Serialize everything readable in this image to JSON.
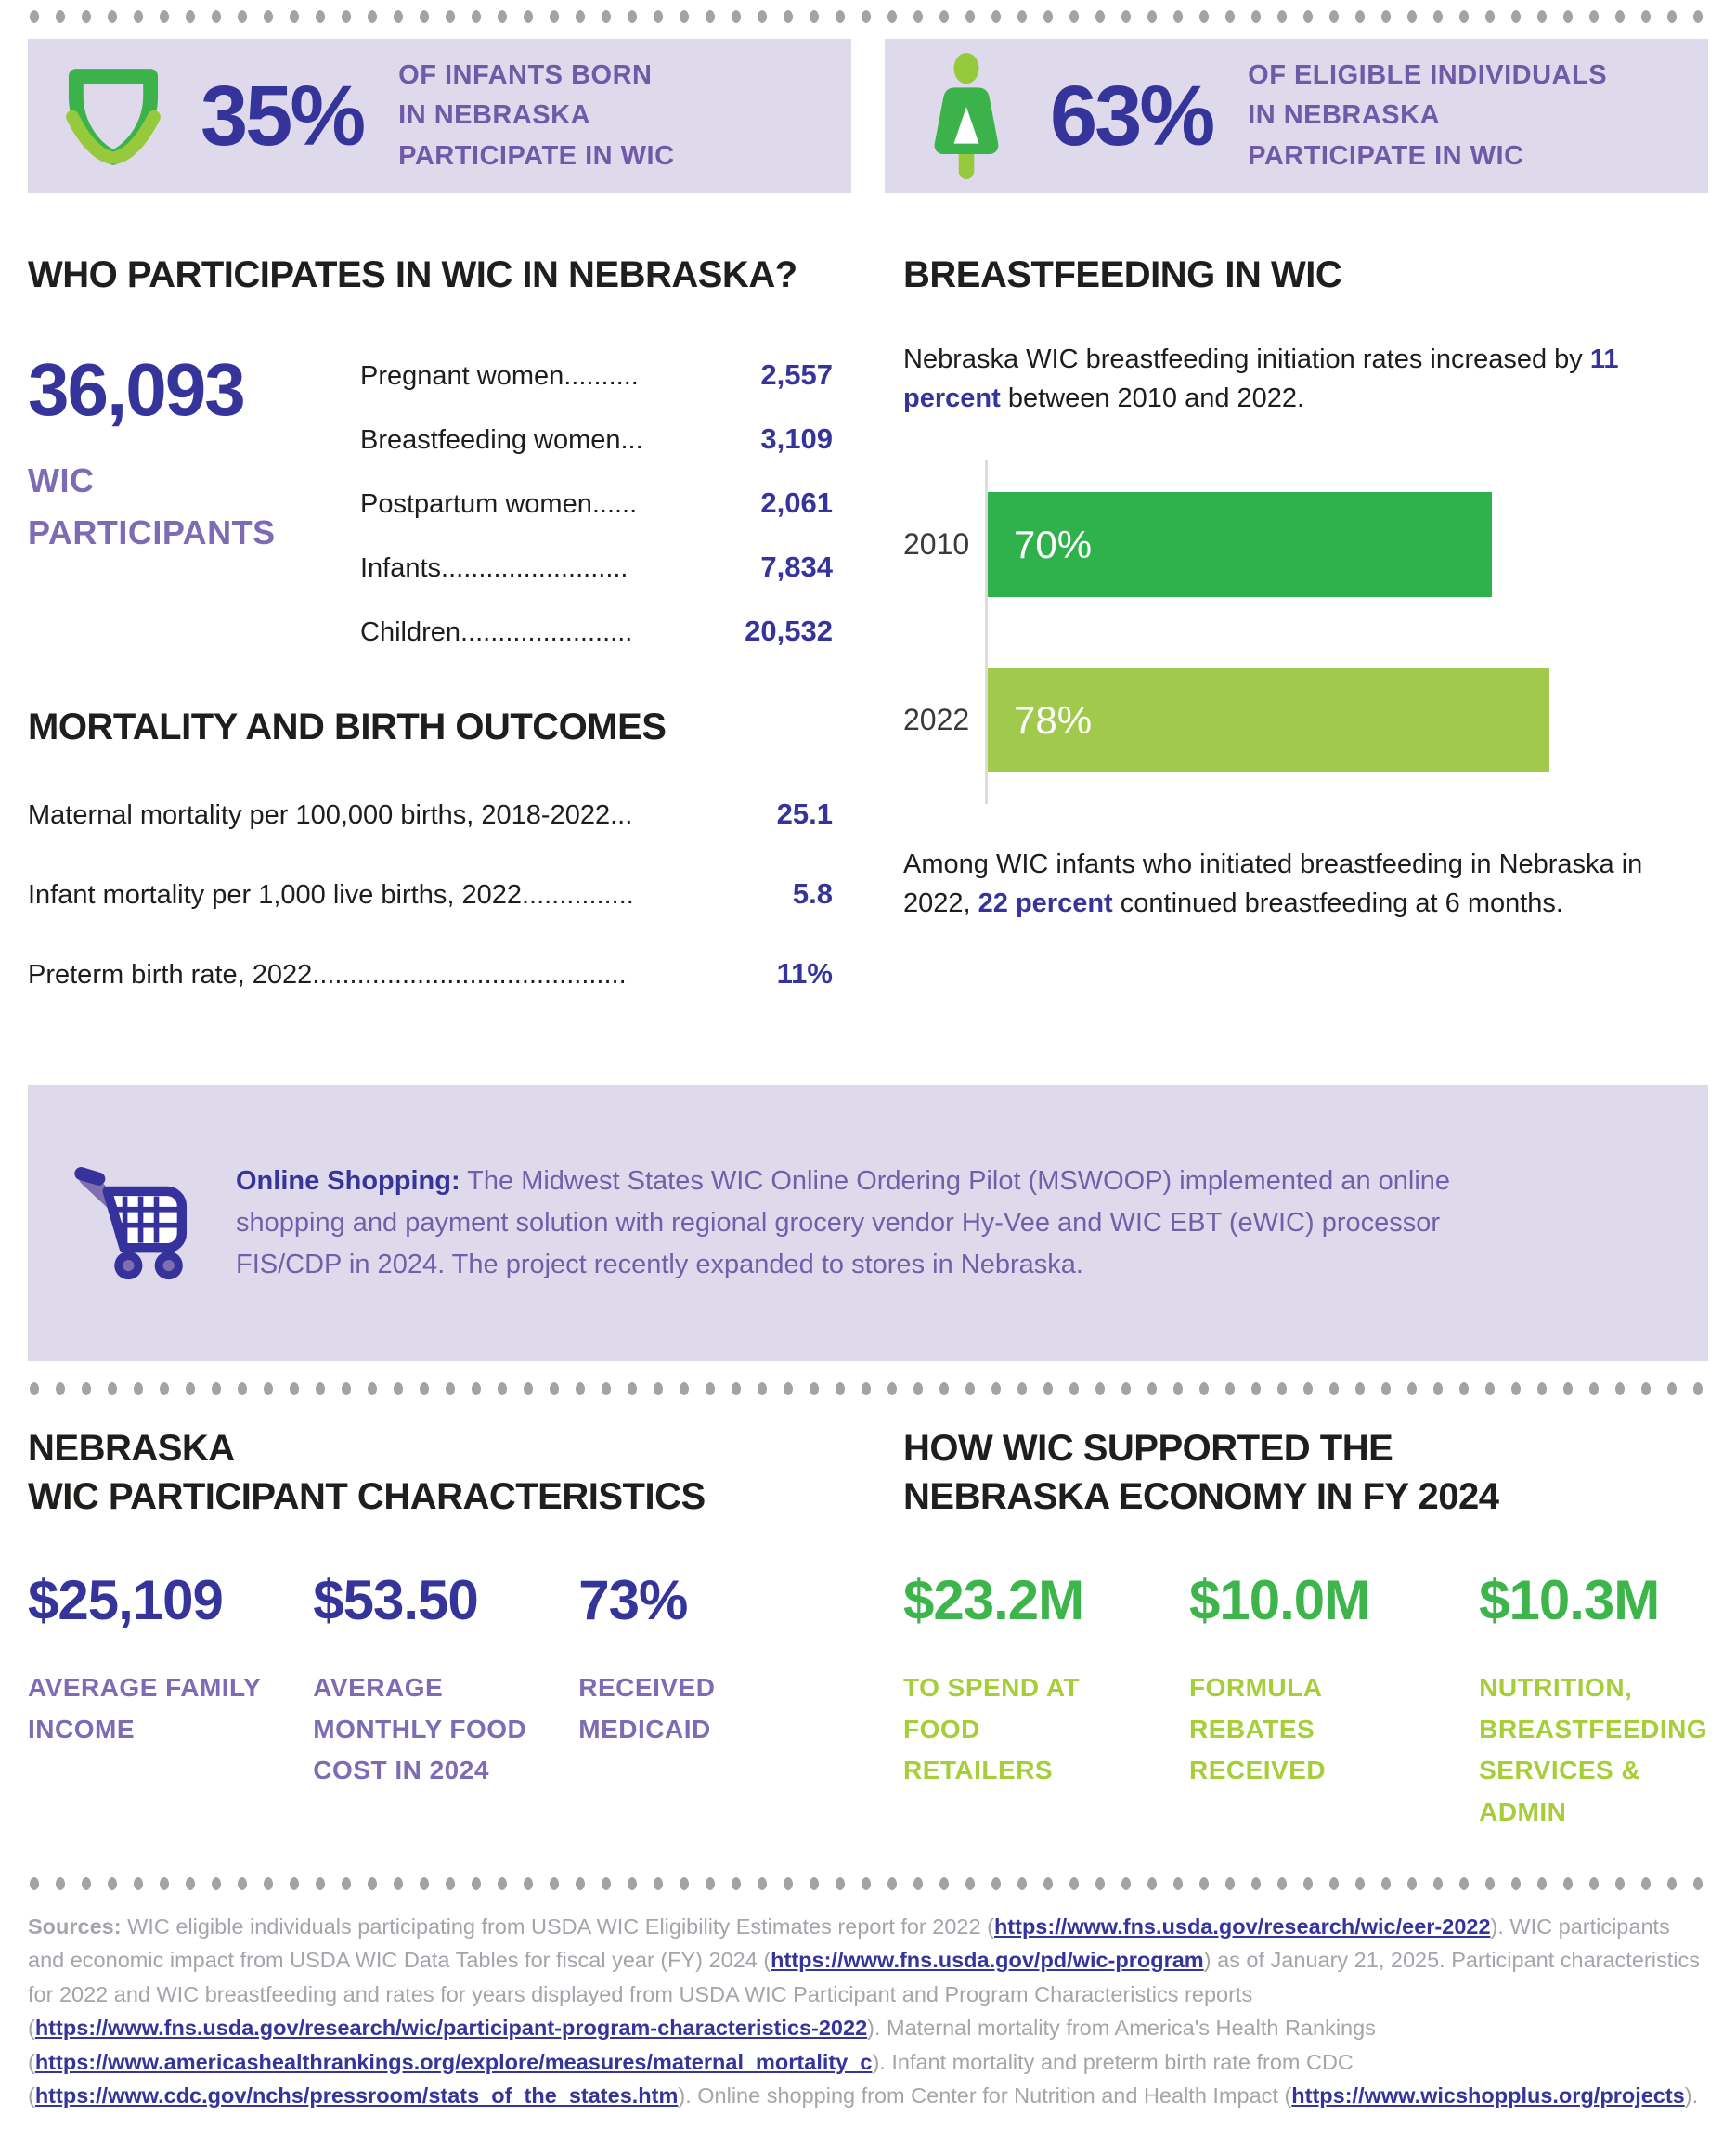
{
  "colors": {
    "indigo": "#35349b",
    "purple_label": "#6f5aa8",
    "lavender": "#dedaec",
    "green_dark": "#2fb14b",
    "green_light_bar": "#a1c94c",
    "green_stat": "#3db54a",
    "green_stat_label": "#a6ce39",
    "gray_dots": "#a3a3a3",
    "gray_sources": "#a4a4aa"
  },
  "banners": [
    {
      "icon": "diaper-icon",
      "value": "35%",
      "label": "OF INFANTS BORN\nIN NEBRASKA\nPARTICIPATE IN WIC"
    },
    {
      "icon": "woman-icon",
      "value": "63%",
      "label": "OF ELIGIBLE INDIVIDUALS\nIN NEBRASKA\nPARTICIPATE IN WIC"
    }
  ],
  "who_participates": {
    "heading": "WHO PARTICIPATES IN WIC IN NEBRASKA?",
    "total_value": "36,093",
    "total_label": "WIC\nPARTICIPANTS",
    "rows": [
      {
        "label": "Pregnant women..........",
        "value": "2,557"
      },
      {
        "label": "Breastfeeding women...",
        "value": "3,109"
      },
      {
        "label": "Postpartum women......",
        "value": "2,061"
      },
      {
        "label": "Infants.........................",
        "value": "7,834"
      },
      {
        "label": "Children.......................",
        "value": "20,532"
      }
    ]
  },
  "mortality": {
    "heading": "MORTALITY AND BIRTH OUTCOMES",
    "rows": [
      {
        "label": "Maternal mortality per 100,000 births, 2018-2022...",
        "value": "25.1"
      },
      {
        "label": "Infant mortality per 1,000 live births, 2022...............",
        "value": "5.8"
      },
      {
        "label": "Preterm birth rate, 2022..........................................",
        "value": "11%"
      }
    ]
  },
  "breastfeeding": {
    "heading": "BREASTFEEDING IN WIC",
    "intro": [
      {
        "text": "Nebraska WIC breastfeeding initiation rates increased by "
      },
      {
        "text": "11 percent"
      },
      {
        "text": " between 2010 and 2022."
      }
    ],
    "outro": [
      {
        "text": "Among WIC infants who initiated breastfeeding in Nebraska in 2022, "
      },
      {
        "text": "22 percent"
      },
      {
        "text": " continued breastfeeding at 6 months."
      }
    ]
  },
  "chart_data": {
    "type": "bar",
    "orientation": "horizontal",
    "categories": [
      "2010",
      "2022"
    ],
    "values": [
      70,
      78
    ],
    "value_labels": [
      "70%",
      "78%"
    ],
    "bar_colors": [
      "#2fb14b",
      "#a1c94c"
    ],
    "xlim": [
      0,
      100
    ],
    "grid": false,
    "title": "Nebraska WIC breastfeeding initiation rate by year"
  },
  "online_shopping": {
    "label": "Online Shopping:",
    "text": " The Midwest States WIC Online Ordering Pilot (MSWOOP) implemented an online shopping and payment solution with regional grocery vendor Hy-Vee and WIC EBT (eWIC) processor FIS/CDP in 2024. The project recently expanded to stores in Nebraska."
  },
  "characteristics": {
    "heading": "NEBRASKA\nWIC PARTICIPANT CHARACTERISTICS",
    "stats": [
      {
        "value": "$25,109",
        "label": "AVERAGE FAMILY\nINCOME"
      },
      {
        "value": "$53.50",
        "label": "AVERAGE\nMONTHLY FOOD\nCOST IN 2024"
      },
      {
        "value": "73%",
        "label": "RECEIVED\nMEDICAID"
      }
    ]
  },
  "economy": {
    "heading": "HOW WIC SUPPORTED THE\nNEBRASKA ECONOMY IN FY 2024",
    "stats": [
      {
        "value": "$23.2M",
        "label": "TO SPEND AT FOOD\nRETAILERS"
      },
      {
        "value": "$10.0M",
        "label": "FORMULA REBATES\nRECEIVED"
      },
      {
        "value": "$10.3M",
        "label": "NUTRITION,\nBREASTFEEDING\nSERVICES & ADMIN"
      }
    ]
  },
  "sources": {
    "segments": [
      {
        "type": "bold",
        "text": "Sources:"
      },
      {
        "type": "text",
        "text": " WIC eligible individuals participating from USDA WIC Eligibility Estimates report for 2022 ("
      },
      {
        "type": "link",
        "text": "https://www.fns.usda.gov/research/wic/eer-2022"
      },
      {
        "type": "text",
        "text": "). WIC participants and economic impact from USDA WIC Data Tables for fiscal year (FY) 2024 ("
      },
      {
        "type": "link",
        "text": "https://www.fns.usda.gov/pd/wic-program"
      },
      {
        "type": "text",
        "text": ") as of January 21, 2025. Participant characteristics for 2022 and WIC breastfeeding and rates for years displayed from USDA WIC Participant and Program Characteristics reports ("
      },
      {
        "type": "link",
        "text": "https://www.fns.usda.gov/research/wic/participant-program-characteristics-2022"
      },
      {
        "type": "text",
        "text": "). Maternal mortality from America's Health Rankings ("
      },
      {
        "type": "link",
        "text": "https://www.americashealthrankings.org/explore/measures/maternal_mortality_c"
      },
      {
        "type": "text",
        "text": "). Infant mortality and preterm birth rate from CDC ("
      },
      {
        "type": "link",
        "text": "https://www.cdc.gov/nchs/pressroom/stats_of_the_states.htm"
      },
      {
        "type": "text",
        "text": "). Online shopping from Center for Nutrition and Health Impact ("
      },
      {
        "type": "link",
        "text": "https://www.wicshopplus.org/projects"
      },
      {
        "type": "text",
        "text": ")."
      }
    ]
  }
}
